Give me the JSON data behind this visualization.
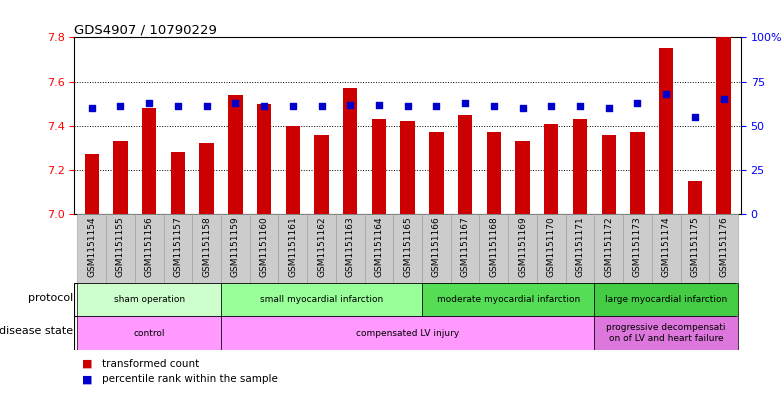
{
  "title": "GDS4907 / 10790229",
  "samples": [
    "GSM1151154",
    "GSM1151155",
    "GSM1151156",
    "GSM1151157",
    "GSM1151158",
    "GSM1151159",
    "GSM1151160",
    "GSM1151161",
    "GSM1151162",
    "GSM1151163",
    "GSM1151164",
    "GSM1151165",
    "GSM1151166",
    "GSM1151167",
    "GSM1151168",
    "GSM1151169",
    "GSM1151170",
    "GSM1151171",
    "GSM1151172",
    "GSM1151173",
    "GSM1151174",
    "GSM1151175",
    "GSM1151176"
  ],
  "transformed_count": [
    7.27,
    7.33,
    7.48,
    7.28,
    7.32,
    7.54,
    7.5,
    7.4,
    7.36,
    7.57,
    7.43,
    7.42,
    7.37,
    7.45,
    7.37,
    7.33,
    7.41,
    7.43,
    7.36,
    7.37,
    7.75,
    7.15,
    7.82
  ],
  "percentile_rank": [
    60,
    61,
    63,
    61,
    61,
    63,
    61,
    61,
    61,
    62,
    62,
    61,
    61,
    63,
    61,
    60,
    61,
    61,
    60,
    63,
    68,
    55,
    65
  ],
  "ylim_left": [
    7.0,
    7.8
  ],
  "ylim_right": [
    0,
    100
  ],
  "yticks_left": [
    7.0,
    7.2,
    7.4,
    7.6,
    7.8
  ],
  "yticks_right": [
    0,
    25,
    50,
    75,
    100
  ],
  "ytick_labels_right": [
    "0",
    "25",
    "50",
    "75",
    "100%"
  ],
  "bar_color": "#cc0000",
  "dot_color": "#0000cc",
  "protocol_groups": [
    {
      "label": "sham operation",
      "start": 0,
      "end": 5,
      "color": "#ccffcc"
    },
    {
      "label": "small myocardial infarction",
      "start": 5,
      "end": 12,
      "color": "#99ff99"
    },
    {
      "label": "moderate myocardial infarction",
      "start": 12,
      "end": 18,
      "color": "#55dd55"
    },
    {
      "label": "large myocardial infarction",
      "start": 18,
      "end": 23,
      "color": "#44cc44"
    }
  ],
  "disease_groups": [
    {
      "label": "control",
      "start": 0,
      "end": 5,
      "color": "#ff99ff"
    },
    {
      "label": "compensated LV injury",
      "start": 5,
      "end": 18,
      "color": "#ff99ff"
    },
    {
      "label": "progressive decompensati\non of LV and heart failure",
      "start": 18,
      "end": 23,
      "color": "#dd77dd"
    }
  ],
  "protocol_label": "protocol",
  "disease_label": "disease state",
  "legend_red_label": "transformed count",
  "legend_blue_label": "percentile rank within the sample",
  "background_color": "#ffffff",
  "xticklabel_bg": "#cccccc",
  "bar_width": 0.5,
  "baseline": 7.0
}
